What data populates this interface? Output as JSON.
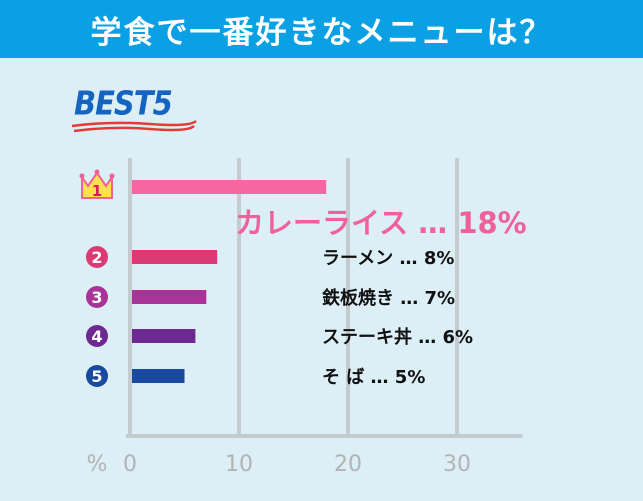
{
  "header": {
    "title": "学食で一番好きなメニューは？"
  },
  "badge": {
    "label": "BEST5"
  },
  "colors": {
    "header_bg": "#0aa0e3",
    "background": "#dceef6",
    "accent_pink": "#f0619c",
    "grid": "#c4cbcf",
    "axis_text": "#b3b3b3"
  },
  "chart_data": {
    "type": "bar",
    "orientation": "horizontal",
    "title": "学食で一番好きなメニューは？",
    "xlabel": "%",
    "xlim": [
      0,
      35
    ],
    "xticks": [
      0,
      10,
      20,
      30
    ],
    "grid": true,
    "ranks": [
      "1",
      "2",
      "3",
      "4",
      "5"
    ],
    "categories": [
      "カレーライス",
      "ラーメン",
      "鉄板焼き",
      "ステーキ丼",
      "そ ば"
    ],
    "values": [
      18,
      8,
      7,
      6,
      5
    ],
    "value_labels": [
      "18%",
      "8%",
      "7%",
      "6%",
      "5%"
    ],
    "separator": "…",
    "bar_colors": [
      "#f567a3",
      "#dc3a73",
      "#a93397",
      "#6c2a90",
      "#1a4a9e"
    ]
  }
}
